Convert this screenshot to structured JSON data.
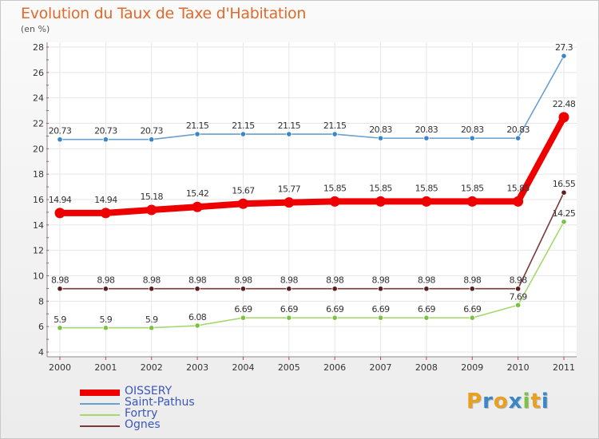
{
  "chart_data": {
    "type": "line",
    "title": "Evolution du Taux de Taxe d'Habitation",
    "subtitle": "(en %)",
    "xlabel": "",
    "ylabel": "",
    "categories": [
      "2000",
      "2001",
      "2002",
      "2003",
      "2004",
      "2005",
      "2006",
      "2007",
      "2008",
      "2009",
      "2010",
      "2011"
    ],
    "ylim": [
      4,
      28
    ],
    "yticks": [
      4,
      6,
      8,
      10,
      12,
      14,
      16,
      18,
      20,
      22,
      24,
      26,
      28
    ],
    "grid": true,
    "legend_position": "bottom-left",
    "series": [
      {
        "name": "Saint-Pathus",
        "color": "#6a9fd1",
        "marker_color": "#3b86c8",
        "emphasis": "normal",
        "values": [
          20.73,
          20.73,
          20.73,
          21.15,
          21.15,
          21.15,
          21.15,
          20.83,
          20.83,
          20.83,
          20.83,
          27.3
        ],
        "labels": [
          "20.73",
          "20.73",
          "20.73",
          "21.15",
          "21.15",
          "21.15",
          "21.15",
          "20.83",
          "20.83",
          "20.83",
          "20.83",
          "27.3"
        ]
      },
      {
        "name": "Fortry",
        "color": "#a6d86e",
        "marker_color": "#7cc242",
        "emphasis": "normal",
        "values": [
          5.9,
          5.9,
          5.9,
          6.08,
          6.69,
          6.69,
          6.69,
          6.69,
          6.69,
          6.69,
          7.69,
          14.25
        ],
        "labels": [
          "5.9",
          "5.9",
          "5.9",
          "6.08",
          "6.69",
          "6.69",
          "6.69",
          "6.69",
          "6.69",
          "6.69",
          "7.69",
          "14.25"
        ]
      },
      {
        "name": "Ognes",
        "color": "#7a3a3a",
        "marker_color": "#5c1e1e",
        "emphasis": "normal",
        "values": [
          8.98,
          8.98,
          8.98,
          8.98,
          8.98,
          8.98,
          8.98,
          8.98,
          8.98,
          8.98,
          8.98,
          16.55
        ],
        "labels": [
          "8.98",
          "8.98",
          "8.98",
          "8.98",
          "8.98",
          "8.98",
          "8.98",
          "8.98",
          "8.98",
          "8.98",
          "8.98",
          "16.55"
        ]
      },
      {
        "name": "OISSERY",
        "color": "#ee0000",
        "marker_color": "#ee0000",
        "emphasis": "bold",
        "values": [
          14.94,
          14.94,
          15.18,
          15.42,
          15.67,
          15.77,
          15.85,
          15.85,
          15.85,
          15.85,
          15.85,
          22.48
        ],
        "labels": [
          "14.94",
          "14.94",
          "15.18",
          "15.42",
          "15.67",
          "15.77",
          "15.85",
          "15.85",
          "15.85",
          "15.85",
          "15.85",
          "22.48"
        ]
      }
    ],
    "legend_order": [
      "OISSERY",
      "Saint-Pathus",
      "Fortry",
      "Ognes"
    ]
  },
  "branding": {
    "logo_letters": [
      "P",
      "r",
      "o",
      "x",
      "i",
      "t",
      "i"
    ],
    "logo_colors": [
      "#e8a020",
      "#3b86c8",
      "#e8a020",
      "#3b86c8",
      "#7cc242",
      "#e8a020",
      "#3b86c8"
    ]
  }
}
